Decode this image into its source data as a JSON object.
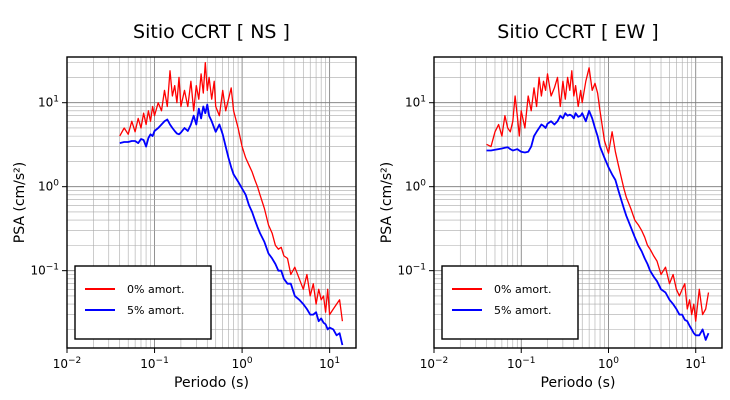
{
  "chart_data": [
    {
      "type": "line",
      "title": "Sitio CCRT [ NS ]",
      "xlabel": "Periodo (s)",
      "ylabel": "PSA (cm/s²)",
      "xscale": "log",
      "yscale": "log",
      "xlim": [
        0.01,
        20
      ],
      "ylim": [
        0.012,
        35
      ],
      "xticks": [
        0.01,
        0.1,
        1,
        10
      ],
      "yticks": [
        0.1,
        1,
        10
      ],
      "grid": true,
      "legend_position": "bottom-left",
      "series": [
        {
          "name": "0% amort.",
          "color": "#ff0000",
          "x": [
            0.04,
            0.045,
            0.05,
            0.055,
            0.06,
            0.065,
            0.07,
            0.075,
            0.08,
            0.085,
            0.09,
            0.095,
            0.1,
            0.11,
            0.12,
            0.13,
            0.14,
            0.15,
            0.16,
            0.17,
            0.18,
            0.19,
            0.2,
            0.22,
            0.24,
            0.26,
            0.28,
            0.3,
            0.32,
            0.34,
            0.36,
            0.38,
            0.4,
            0.42,
            0.45,
            0.48,
            0.5,
            0.55,
            0.6,
            0.65,
            0.7,
            0.75,
            0.8,
            0.9,
            1.0,
            1.1,
            1.2,
            1.3,
            1.4,
            1.5,
            1.6,
            1.8,
            2.0,
            2.2,
            2.4,
            2.6,
            2.8,
            3.0,
            3.3,
            3.6,
            4.0,
            4.5,
            5.0,
            5.5,
            6.0,
            6.5,
            7.0,
            7.5,
            8.0,
            8.5,
            9.0,
            9.5,
            10,
            11,
            12,
            13,
            14
          ],
          "y": [
            4.0,
            5.0,
            4.2,
            6.0,
            4.5,
            6.5,
            5.0,
            7.5,
            5.5,
            8.0,
            6.0,
            9.0,
            7.0,
            10.0,
            8.0,
            14.0,
            9.0,
            24.0,
            12.0,
            16.0,
            10.0,
            20.0,
            9.0,
            14.0,
            9.0,
            18.0,
            8.0,
            16.0,
            11.0,
            22.0,
            13.0,
            30.0,
            14.0,
            20.0,
            11.0,
            18.0,
            9.0,
            7.0,
            14.0,
            8.0,
            11.0,
            15.0,
            8.0,
            5.0,
            3.0,
            2.2,
            1.8,
            1.5,
            1.2,
            1.0,
            0.8,
            0.55,
            0.35,
            0.28,
            0.2,
            0.18,
            0.19,
            0.15,
            0.14,
            0.09,
            0.11,
            0.08,
            0.06,
            0.09,
            0.05,
            0.07,
            0.04,
            0.06,
            0.045,
            0.05,
            0.032,
            0.06,
            0.03,
            0.035,
            0.04,
            0.045,
            0.025
          ]
        },
        {
          "name": "5% amort.",
          "color": "#0000ff",
          "x": [
            0.04,
            0.045,
            0.05,
            0.055,
            0.06,
            0.065,
            0.07,
            0.075,
            0.08,
            0.085,
            0.09,
            0.095,
            0.1,
            0.11,
            0.12,
            0.13,
            0.14,
            0.15,
            0.16,
            0.17,
            0.18,
            0.19,
            0.2,
            0.22,
            0.24,
            0.26,
            0.28,
            0.3,
            0.32,
            0.34,
            0.36,
            0.38,
            0.4,
            0.42,
            0.45,
            0.48,
            0.5,
            0.55,
            0.6,
            0.65,
            0.7,
            0.75,
            0.8,
            0.9,
            1.0,
            1.1,
            1.2,
            1.3,
            1.4,
            1.5,
            1.6,
            1.8,
            2.0,
            2.2,
            2.4,
            2.6,
            2.8,
            3.0,
            3.3,
            3.6,
            4.0,
            4.5,
            5.0,
            5.5,
            6.0,
            6.5,
            7.0,
            7.5,
            8.0,
            8.5,
            9.0,
            9.5,
            10,
            11,
            12,
            13,
            14
          ],
          "y": [
            3.3,
            3.4,
            3.4,
            3.5,
            3.5,
            3.3,
            3.7,
            3.6,
            3.0,
            3.8,
            4.2,
            4.0,
            4.6,
            5.0,
            5.5,
            6.0,
            6.3,
            5.5,
            5.0,
            4.6,
            4.3,
            4.2,
            4.4,
            5.0,
            4.6,
            5.5,
            7.0,
            5.5,
            8.5,
            6.5,
            9.0,
            7.5,
            9.5,
            7.0,
            6.0,
            5.0,
            4.5,
            5.5,
            4.2,
            3.0,
            2.2,
            1.7,
            1.4,
            1.15,
            0.95,
            0.8,
            0.6,
            0.5,
            0.4,
            0.33,
            0.28,
            0.22,
            0.16,
            0.14,
            0.12,
            0.1,
            0.1,
            0.08,
            0.07,
            0.07,
            0.05,
            0.045,
            0.04,
            0.035,
            0.03,
            0.03,
            0.032,
            0.025,
            0.027,
            0.024,
            0.023,
            0.02,
            0.021,
            0.02,
            0.017,
            0.018,
            0.013
          ]
        }
      ]
    },
    {
      "type": "line",
      "title": "Sitio CCRT [ EW ]",
      "xlabel": "Periodo (s)",
      "ylabel": "PSA (cm/s²)",
      "xscale": "log",
      "yscale": "log",
      "xlim": [
        0.01,
        20
      ],
      "ylim": [
        0.012,
        35
      ],
      "xticks": [
        0.01,
        0.1,
        1,
        10
      ],
      "yticks": [
        0.1,
        1,
        10
      ],
      "grid": true,
      "legend_position": "bottom-left",
      "series": [
        {
          "name": "0% amort.",
          "color": "#ff0000",
          "x": [
            0.04,
            0.045,
            0.05,
            0.055,
            0.06,
            0.065,
            0.07,
            0.075,
            0.08,
            0.085,
            0.09,
            0.095,
            0.1,
            0.11,
            0.12,
            0.13,
            0.14,
            0.15,
            0.16,
            0.17,
            0.18,
            0.19,
            0.2,
            0.22,
            0.24,
            0.26,
            0.28,
            0.3,
            0.32,
            0.34,
            0.36,
            0.38,
            0.4,
            0.42,
            0.45,
            0.48,
            0.5,
            0.55,
            0.6,
            0.65,
            0.7,
            0.75,
            0.8,
            0.9,
            1.0,
            1.1,
            1.2,
            1.3,
            1.4,
            1.5,
            1.6,
            1.8,
            2.0,
            2.2,
            2.4,
            2.6,
            2.8,
            3.0,
            3.3,
            3.6,
            4.0,
            4.5,
            5.0,
            5.5,
            6.0,
            6.5,
            7.0,
            7.5,
            8.0,
            8.5,
            9.0,
            9.5,
            10,
            11,
            12,
            13,
            14
          ],
          "y": [
            3.2,
            3.0,
            4.5,
            5.5,
            4.0,
            7.0,
            5.0,
            4.5,
            6.0,
            12.0,
            7.0,
            4.0,
            8.0,
            5.0,
            12.0,
            8.0,
            15.0,
            9.0,
            20.0,
            12.0,
            18.0,
            14.0,
            22.0,
            12.0,
            15.0,
            20.0,
            9.0,
            18.0,
            11.0,
            20.0,
            14.0,
            24.0,
            12.0,
            16.0,
            9.0,
            14.0,
            10.0,
            18.0,
            26.0,
            14.0,
            17.0,
            13.0,
            8.0,
            3.5,
            2.5,
            4.5,
            2.6,
            1.8,
            1.3,
            0.95,
            0.75,
            0.55,
            0.4,
            0.35,
            0.3,
            0.25,
            0.2,
            0.18,
            0.15,
            0.13,
            0.09,
            0.11,
            0.07,
            0.09,
            0.06,
            0.05,
            0.06,
            0.07,
            0.035,
            0.045,
            0.03,
            0.04,
            0.025,
            0.06,
            0.03,
            0.035,
            0.055
          ]
        },
        {
          "name": "5% amort.",
          "color": "#0000ff",
          "x": [
            0.04,
            0.045,
            0.05,
            0.055,
            0.06,
            0.065,
            0.07,
            0.075,
            0.08,
            0.085,
            0.09,
            0.095,
            0.1,
            0.11,
            0.12,
            0.13,
            0.14,
            0.15,
            0.16,
            0.17,
            0.18,
            0.19,
            0.2,
            0.22,
            0.24,
            0.26,
            0.28,
            0.3,
            0.32,
            0.34,
            0.36,
            0.38,
            0.4,
            0.42,
            0.45,
            0.48,
            0.5,
            0.55,
            0.6,
            0.65,
            0.7,
            0.75,
            0.8,
            0.9,
            1.0,
            1.1,
            1.2,
            1.3,
            1.4,
            1.5,
            1.6,
            1.8,
            2.0,
            2.2,
            2.4,
            2.6,
            2.8,
            3.0,
            3.3,
            3.6,
            4.0,
            4.5,
            5.0,
            5.5,
            6.0,
            6.5,
            7.0,
            7.5,
            8.0,
            8.5,
            9.0,
            9.5,
            10,
            11,
            12,
            13,
            14
          ],
          "y": [
            2.7,
            2.7,
            2.75,
            2.8,
            2.85,
            2.9,
            2.95,
            2.8,
            2.7,
            2.75,
            2.8,
            2.7,
            2.6,
            2.55,
            2.6,
            3.0,
            4.0,
            4.5,
            5.0,
            5.5,
            5.3,
            5.0,
            5.6,
            6.0,
            5.5,
            6.0,
            7.0,
            6.5,
            7.5,
            7.0,
            7.2,
            7.0,
            6.5,
            7.5,
            6.8,
            7.0,
            7.5,
            6.0,
            8.0,
            6.5,
            5.0,
            4.0,
            3.0,
            2.2,
            1.7,
            1.4,
            1.2,
            0.9,
            0.7,
            0.55,
            0.45,
            0.33,
            0.25,
            0.2,
            0.17,
            0.14,
            0.12,
            0.1,
            0.085,
            0.075,
            0.06,
            0.055,
            0.045,
            0.04,
            0.035,
            0.03,
            0.03,
            0.026,
            0.025,
            0.022,
            0.02,
            0.018,
            0.017,
            0.017,
            0.02,
            0.015,
            0.018
          ]
        }
      ]
    }
  ]
}
